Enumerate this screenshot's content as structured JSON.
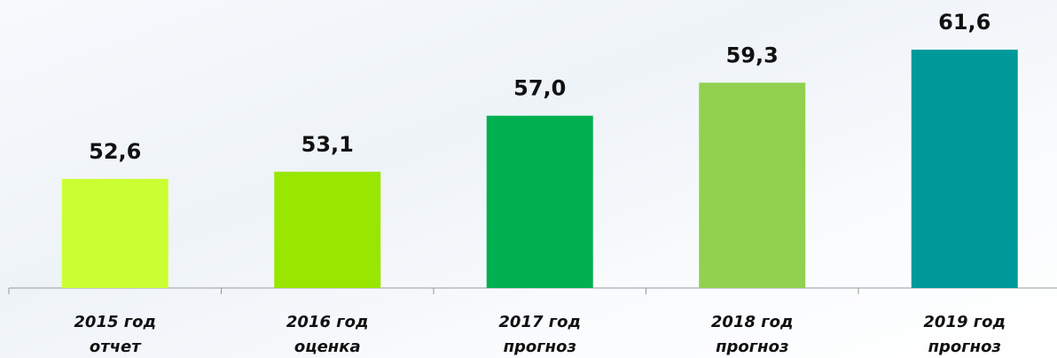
{
  "chart_data": {
    "type": "bar",
    "categories": [
      [
        "2015 год",
        "отчет"
      ],
      [
        "2016 год",
        "оценка"
      ],
      [
        "2017 год",
        "прогноз"
      ],
      [
        "2018 год",
        "прогноз"
      ],
      [
        "2019 год",
        "прогноз"
      ]
    ],
    "values": [
      52.6,
      53.1,
      57.0,
      59.3,
      61.6
    ],
    "value_labels": [
      "52,6",
      "53,1",
      "57,0",
      "59,3",
      "61,6"
    ],
    "colors": [
      "#ccff33",
      "#99e600",
      "#00b050",
      "#92d050",
      "#009999"
    ],
    "ylim": [
      45,
      65
    ]
  }
}
